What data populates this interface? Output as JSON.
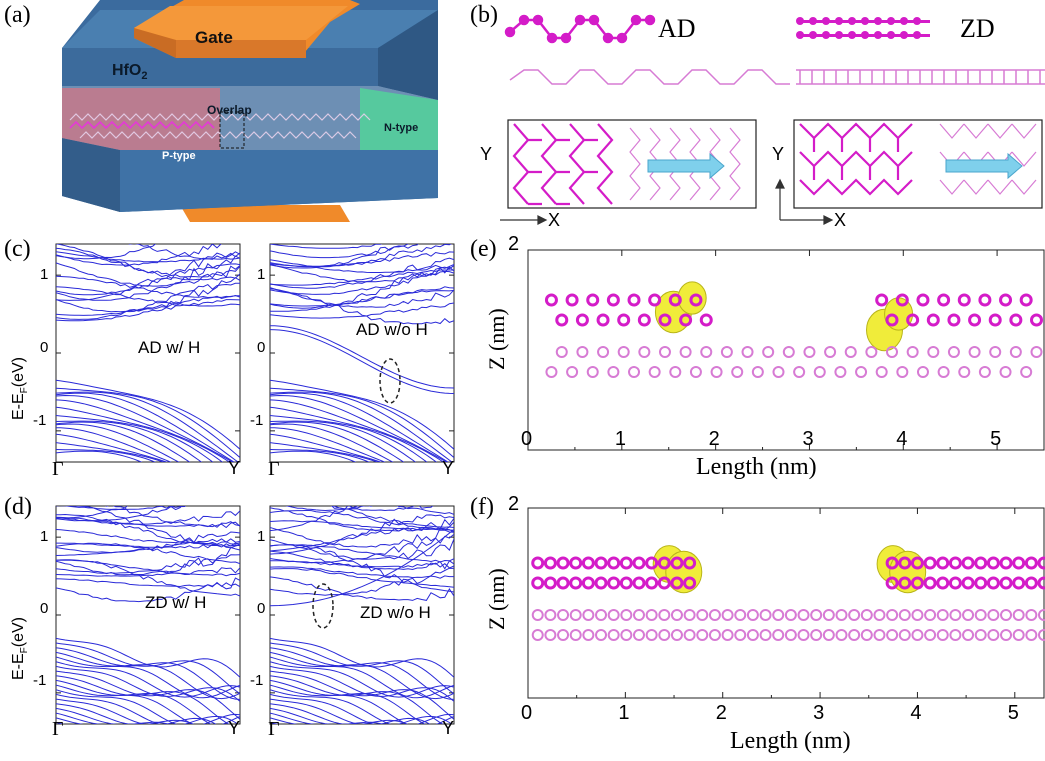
{
  "panels": {
    "a": {
      "label": "(a)",
      "gate": "Gate",
      "hfo2": "HfO",
      "hfo2_sub": "2",
      "overlap": "Overlap",
      "ptype": "P-type",
      "ntype": "N-type"
    },
    "b": {
      "label": "(b)",
      "ad": "AD",
      "zd": "ZD",
      "y_axis": "Y",
      "x_axis": "X"
    },
    "c": {
      "label": "(c)",
      "ylabel_main": "E-E",
      "ylabel_sub": "F",
      "ylabel_unit": "(eV)",
      "left_text": "AD w/ H",
      "right_text": "AD w/o H",
      "ticks_y": [
        "1",
        "0",
        "-1"
      ],
      "ticks_x": [
        "Γ",
        "Y"
      ]
    },
    "d": {
      "label": "(d)",
      "ylabel_main": "E-E",
      "ylabel_sub": "F",
      "ylabel_unit": "(eV)",
      "left_text": "ZD w/ H",
      "right_text": "ZD w/o H",
      "ticks_y": [
        "1",
        "0",
        "-1"
      ],
      "ticks_x": [
        "Γ",
        "Y"
      ]
    },
    "e": {
      "label": "(e)",
      "ylabel": "Z (nm)",
      "xlabel": "Length (nm)",
      "ytick_top": "2",
      "xticks": [
        "0",
        "1",
        "2",
        "3",
        "4",
        "5"
      ]
    },
    "f": {
      "label": "(f)",
      "ylabel": "Z (nm)",
      "xlabel": "Length (nm)",
      "ytick_top": "2",
      "xticks": [
        "0",
        "1",
        "2",
        "3",
        "4",
        "5"
      ]
    }
  },
  "colors": {
    "band": "#2a2ad8",
    "atom_dark": "#d41cc8",
    "atom_light": "#d77bd4",
    "density": "#f0ec3a",
    "hfo2": "#3f6ea0",
    "gate": "#f08a2a",
    "ptype": "#c8798a",
    "ntype": "#52d49a"
  },
  "chart_data": [
    {
      "type": "line",
      "panel": "c-left",
      "x": [
        "Γ",
        "Y"
      ],
      "ylim": [
        -1.4,
        1.4
      ],
      "annotation": "AD w/ H"
    },
    {
      "type": "line",
      "panel": "c-right",
      "x": [
        "Γ",
        "Y"
      ],
      "ylim": [
        -1.4,
        1.4
      ],
      "annotation": "AD w/o H"
    },
    {
      "type": "line",
      "panel": "d-left",
      "x": [
        "Γ",
        "Y"
      ],
      "ylim": [
        -1.4,
        1.4
      ],
      "annotation": "ZD w/ H"
    },
    {
      "type": "line",
      "panel": "d-right",
      "x": [
        "Γ",
        "Y"
      ],
      "ylim": [
        -1.4,
        1.4
      ],
      "annotation": "ZD w/o H"
    },
    {
      "type": "scatter",
      "panel": "e",
      "xlabel": "Length (nm)",
      "ylabel": "Z (nm)",
      "xlim": [
        0,
        5.5
      ],
      "xticks": [
        0,
        1,
        2,
        3,
        4,
        5
      ]
    },
    {
      "type": "scatter",
      "panel": "f",
      "xlabel": "Length (nm)",
      "ylabel": "Z (nm)",
      "xlim": [
        0,
        5.3
      ],
      "xticks": [
        0,
        1,
        2,
        3,
        4,
        5
      ]
    }
  ]
}
